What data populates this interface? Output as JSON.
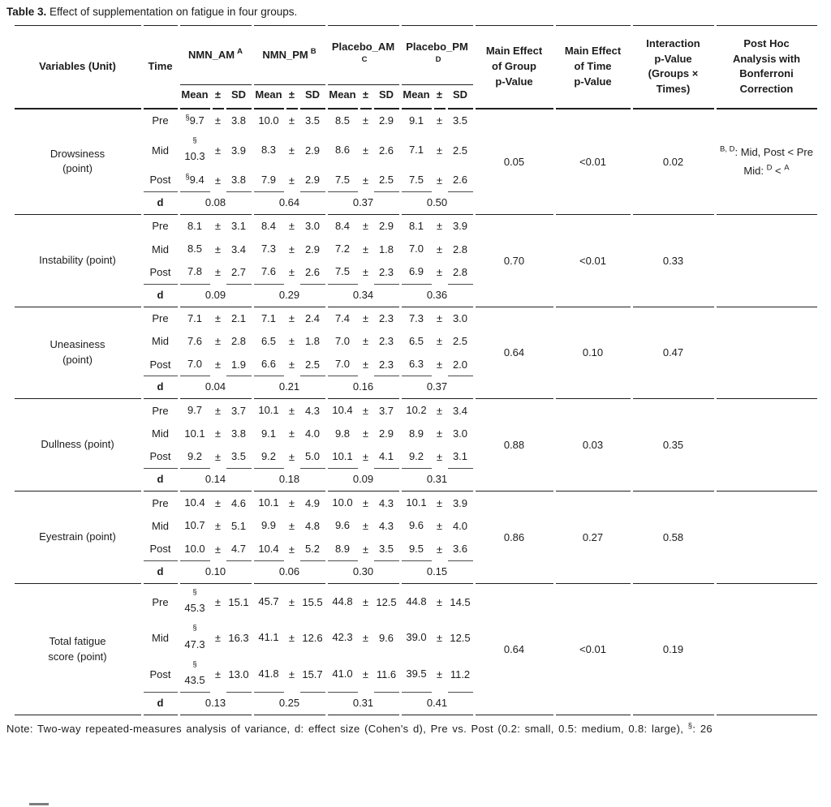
{
  "title": {
    "bold": "Table 3.",
    "rest": " Effect of supplementation on fatigue in four groups."
  },
  "table": {
    "col_headers": {
      "variables": "Variables (Unit)",
      "time": "Time",
      "groups": [
        {
          "name": "NMN_AM",
          "sup": "A",
          "two_line": false
        },
        {
          "name": "NMN_PM",
          "sup": "B",
          "two_line": false
        },
        {
          "name": "Placebo_AM",
          "sup": "C",
          "two_line": true
        },
        {
          "name": "Placebo_PM",
          "sup": "D",
          "two_line": true
        }
      ],
      "mean_sd": {
        "mean": "Mean",
        "pm": "±",
        "sd": "SD"
      },
      "stats": [
        "Main Effect\nof Group\np-Value",
        "Main Effect\nof Time\np-Value",
        "Interaction\np-Value\n(Groups ×\nTimes)",
        "Post Hoc\nAnalysis with\nBonferroni\nCorrection"
      ]
    },
    "d_label": "d",
    "sections": [
      {
        "variable": "Drowsiness\n(point)",
        "rows": [
          {
            "time": "Pre",
            "cells": [
              {
                "sup": "§",
                "mean": "9.7",
                "sd": "3.8",
                "wrap": false
              },
              {
                "mean": "10.0",
                "sd": "3.5"
              },
              {
                "mean": "8.5",
                "sd": "2.9"
              },
              {
                "mean": "9.1",
                "sd": "3.5"
              }
            ]
          },
          {
            "time": "Mid",
            "cells": [
              {
                "sup": "§",
                "mean": "10.3",
                "sd": "3.9",
                "wrap": true
              },
              {
                "mean": "8.3",
                "sd": "2.9"
              },
              {
                "mean": "8.6",
                "sd": "2.6"
              },
              {
                "mean": "7.1",
                "sd": "2.5"
              }
            ]
          },
          {
            "time": "Post",
            "cells": [
              {
                "sup": "§",
                "mean": "9.4",
                "sd": "3.8",
                "wrap": false
              },
              {
                "mean": "7.9",
                "sd": "2.9"
              },
              {
                "mean": "7.5",
                "sd": "2.5"
              },
              {
                "mean": "7.5",
                "sd": "2.6"
              }
            ]
          }
        ],
        "d": [
          "0.08",
          "0.64",
          "0.37",
          "0.50"
        ],
        "p_group": "0.05",
        "p_time": "<0.01",
        "p_interaction": "0.02",
        "post_hoc": [
          [
            {
              "sup": "B, D"
            },
            {
              "text": ": Mid, Post < Pre"
            }
          ],
          [
            {
              "text": "Mid: "
            },
            {
              "sup": "D"
            },
            {
              "text": " < "
            },
            {
              "sup": "A"
            }
          ]
        ]
      },
      {
        "variable": "Instability (point)",
        "rows": [
          {
            "time": "Pre",
            "cells": [
              {
                "mean": "8.1",
                "sd": "3.1"
              },
              {
                "mean": "8.4",
                "sd": "3.0"
              },
              {
                "mean": "8.4",
                "sd": "2.9"
              },
              {
                "mean": "8.1",
                "sd": "3.9"
              }
            ]
          },
          {
            "time": "Mid",
            "cells": [
              {
                "mean": "8.5",
                "sd": "3.4"
              },
              {
                "mean": "7.3",
                "sd": "2.9"
              },
              {
                "mean": "7.2",
                "sd": "1.8"
              },
              {
                "mean": "7.0",
                "sd": "2.8"
              }
            ]
          },
          {
            "time": "Post",
            "cells": [
              {
                "mean": "7.8",
                "sd": "2.7"
              },
              {
                "mean": "7.6",
                "sd": "2.6"
              },
              {
                "mean": "7.5",
                "sd": "2.3"
              },
              {
                "mean": "6.9",
                "sd": "2.8"
              }
            ]
          }
        ],
        "d": [
          "0.09",
          "0.29",
          "0.34",
          "0.36"
        ],
        "p_group": "0.70",
        "p_time": "<0.01",
        "p_interaction": "0.33",
        "post_hoc": []
      },
      {
        "variable": "Uneasiness\n(point)",
        "rows": [
          {
            "time": "Pre",
            "cells": [
              {
                "mean": "7.1",
                "sd": "2.1"
              },
              {
                "mean": "7.1",
                "sd": "2.4"
              },
              {
                "mean": "7.4",
                "sd": "2.3"
              },
              {
                "mean": "7.3",
                "sd": "3.0"
              }
            ]
          },
          {
            "time": "Mid",
            "cells": [
              {
                "mean": "7.6",
                "sd": "2.8"
              },
              {
                "mean": "6.5",
                "sd": "1.8"
              },
              {
                "mean": "7.0",
                "sd": "2.3"
              },
              {
                "mean": "6.5",
                "sd": "2.5"
              }
            ]
          },
          {
            "time": "Post",
            "cells": [
              {
                "mean": "7.0",
                "sd": "1.9"
              },
              {
                "mean": "6.6",
                "sd": "2.5"
              },
              {
                "mean": "7.0",
                "sd": "2.3"
              },
              {
                "mean": "6.3",
                "sd": "2.0"
              }
            ]
          }
        ],
        "d": [
          "0.04",
          "0.21",
          "0.16",
          "0.37"
        ],
        "p_group": "0.64",
        "p_time": "0.10",
        "p_interaction": "0.47",
        "post_hoc": []
      },
      {
        "variable": "Dullness (point)",
        "rows": [
          {
            "time": "Pre",
            "cells": [
              {
                "mean": "9.7",
                "sd": "3.7"
              },
              {
                "mean": "10.1",
                "sd": "4.3"
              },
              {
                "mean": "10.4",
                "sd": "3.7"
              },
              {
                "mean": "10.2",
                "sd": "3.4"
              }
            ]
          },
          {
            "time": "Mid",
            "cells": [
              {
                "mean": "10.1",
                "sd": "3.8"
              },
              {
                "mean": "9.1",
                "sd": "4.0"
              },
              {
                "mean": "9.8",
                "sd": "2.9"
              },
              {
                "mean": "8.9",
                "sd": "3.0"
              }
            ]
          },
          {
            "time": "Post",
            "cells": [
              {
                "mean": "9.2",
                "sd": "3.5"
              },
              {
                "mean": "9.2",
                "sd": "5.0"
              },
              {
                "mean": "10.1",
                "sd": "4.1"
              },
              {
                "mean": "9.2",
                "sd": "3.1"
              }
            ]
          }
        ],
        "d": [
          "0.14",
          "0.18",
          "0.09",
          "0.31"
        ],
        "p_group": "0.88",
        "p_time": "0.03",
        "p_interaction": "0.35",
        "post_hoc": []
      },
      {
        "variable": "Eyestrain (point)",
        "rows": [
          {
            "time": "Pre",
            "cells": [
              {
                "mean": "10.4",
                "sd": "4.6"
              },
              {
                "mean": "10.1",
                "sd": "4.9"
              },
              {
                "mean": "10.0",
                "sd": "4.3"
              },
              {
                "mean": "10.1",
                "sd": "3.9"
              }
            ]
          },
          {
            "time": "Mid",
            "cells": [
              {
                "mean": "10.7",
                "sd": "5.1"
              },
              {
                "mean": "9.9",
                "sd": "4.8"
              },
              {
                "mean": "9.6",
                "sd": "4.3"
              },
              {
                "mean": "9.6",
                "sd": "4.0"
              }
            ]
          },
          {
            "time": "Post",
            "cells": [
              {
                "mean": "10.0",
                "sd": "4.7"
              },
              {
                "mean": "10.4",
                "sd": "5.2"
              },
              {
                "mean": "8.9",
                "sd": "3.5"
              },
              {
                "mean": "9.5",
                "sd": "3.6"
              }
            ]
          }
        ],
        "d": [
          "0.10",
          "0.06",
          "0.30",
          "0.15"
        ],
        "p_group": "0.86",
        "p_time": "0.27",
        "p_interaction": "0.58",
        "post_hoc": []
      },
      {
        "variable": "Total fatigue\nscore (point)",
        "rows": [
          {
            "time": "Pre",
            "cells": [
              {
                "sup": "§",
                "mean": "45.3",
                "sd": "15.1",
                "wrap": true
              },
              {
                "mean": "45.7",
                "sd": "15.5"
              },
              {
                "mean": "44.8",
                "sd": "12.5"
              },
              {
                "mean": "44.8",
                "sd": "14.5"
              }
            ]
          },
          {
            "time": "Mid",
            "cells": [
              {
                "sup": "§",
                "mean": "47.3",
                "sd": "16.3",
                "wrap": true
              },
              {
                "mean": "41.1",
                "sd": "12.6"
              },
              {
                "mean": "42.3",
                "sd": "9.6"
              },
              {
                "mean": "39.0",
                "sd": "12.5"
              }
            ]
          },
          {
            "time": "Post",
            "cells": [
              {
                "sup": "§",
                "mean": "43.5",
                "sd": "13.0",
                "wrap": true
              },
              {
                "mean": "41.8",
                "sd": "15.7"
              },
              {
                "mean": "41.0",
                "sd": "11.6"
              },
              {
                "mean": "39.5",
                "sd": "11.2"
              }
            ]
          }
        ],
        "d": [
          "0.13",
          "0.25",
          "0.31",
          "0.41"
        ],
        "p_group": "0.64",
        "p_time": "<0.01",
        "p_interaction": "0.19",
        "post_hoc": []
      }
    ]
  },
  "note": {
    "prefix": "Note: Two-way repeated-measures analysis of variance, d: effect size (Cohen's d), Pre vs. Post (0.2: small, 0.5: medium, 0.8: large), ",
    "sup": "§",
    "suffix": ": 26"
  }
}
